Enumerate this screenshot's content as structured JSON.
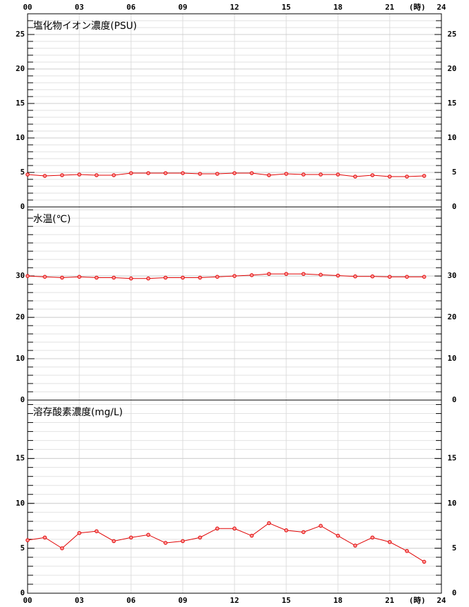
{
  "chart_data": [
    {
      "type": "line",
      "title": "塩化物イオン濃度(PSU)",
      "x_unit": "(時)",
      "xlim": [
        0,
        24
      ],
      "xticks": [
        {
          "value": 0,
          "label": "00"
        },
        {
          "value": 3,
          "label": "03"
        },
        {
          "value": 6,
          "label": "06"
        },
        {
          "value": 9,
          "label": "09"
        },
        12,
        15,
        18,
        21,
        24
      ],
      "ylim": [
        0,
        28
      ],
      "yticks": [
        0,
        5,
        10,
        15,
        20,
        25
      ],
      "grid": true,
      "series": [
        {
          "color": "#e00000",
          "x": [
            0,
            1,
            2,
            3,
            4,
            5,
            6,
            7,
            8,
            9,
            10,
            11,
            12,
            13,
            14,
            15,
            16,
            17,
            18,
            19,
            20,
            21,
            22,
            23
          ],
          "values": [
            4.7,
            4.5,
            4.6,
            4.7,
            4.6,
            4.6,
            4.9,
            4.9,
            4.9,
            4.9,
            4.8,
            4.8,
            4.9,
            4.9,
            4.6,
            4.8,
            4.7,
            4.7,
            4.7,
            4.4,
            4.6,
            4.4,
            4.4,
            4.5
          ]
        }
      ]
    },
    {
      "type": "line",
      "title": "水温(℃)",
      "xlim": [
        0,
        24
      ],
      "ylim": [
        0,
        46.7
      ],
      "yticks": [
        0,
        10,
        20,
        30
      ],
      "grid": true,
      "series": [
        {
          "color": "#e00000",
          "x": [
            0,
            1,
            2,
            3,
            4,
            5,
            6,
            7,
            8,
            9,
            10,
            11,
            12,
            13,
            14,
            15,
            16,
            17,
            18,
            19,
            20,
            21,
            22,
            23
          ],
          "values": [
            30.0,
            29.8,
            29.6,
            29.8,
            29.6,
            29.6,
            29.4,
            29.4,
            29.6,
            29.6,
            29.6,
            29.8,
            30.0,
            30.2,
            30.5,
            30.5,
            30.5,
            30.3,
            30.1,
            29.9,
            29.9,
            29.8,
            29.8,
            29.8
          ]
        }
      ]
    },
    {
      "type": "line",
      "title": "溶存酸素濃度(mg/L)",
      "x_unit": "(時)",
      "xlim": [
        0,
        24
      ],
      "xticks": [
        {
          "value": 0,
          "label": "00"
        },
        {
          "value": 3,
          "label": "03"
        },
        {
          "value": 6,
          "label": "06"
        },
        {
          "value": 9,
          "label": "09"
        },
        12,
        15,
        18,
        21,
        24
      ],
      "ylim": [
        0,
        21.5
      ],
      "yticks": [
        0,
        5,
        10,
        15
      ],
      "grid": true,
      "series": [
        {
          "color": "#e00000",
          "x": [
            0,
            1,
            2,
            3,
            4,
            5,
            6,
            7,
            8,
            9,
            10,
            11,
            12,
            13,
            14,
            15,
            16,
            17,
            18,
            19,
            20,
            21,
            22,
            23
          ],
          "values": [
            5.9,
            6.2,
            5.0,
            6.7,
            6.9,
            5.8,
            6.2,
            6.5,
            5.6,
            5.8,
            6.2,
            7.2,
            7.2,
            6.4,
            7.8,
            7.0,
            6.8,
            7.5,
            6.4,
            5.3,
            6.2,
            5.7,
            4.7,
            3.5
          ]
        }
      ]
    }
  ]
}
